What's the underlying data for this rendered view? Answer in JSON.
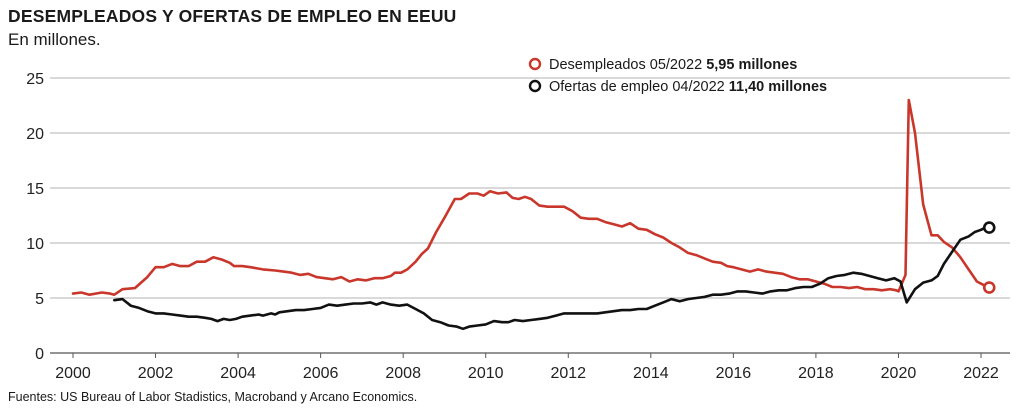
{
  "title": "DESEMPLEADOS Y OFERTAS DE EMPLEO EN EEUU",
  "subtitle": "En millones.",
  "source": "Fuentes: US Bureau of Labor Stadistics, Macroband y Arcano Economics.",
  "colors": {
    "unemployed": "#c9372c",
    "openings": "#111111",
    "grid": "#9a9a9a"
  },
  "legend": [
    {
      "label": "Desempleados 05/2022",
      "value": "5,95 millones",
      "color": "#c9372c"
    },
    {
      "label": "Ofertas de empleo 04/2022",
      "value": "11,40 millones",
      "color": "#111111"
    }
  ],
  "chart_data": {
    "type": "line",
    "title": "DESEMPLEADOS Y OFERTAS DE EMPLEO EN EEUU",
    "subtitle": "En millones.",
    "xlim": [
      1999.6,
      2022.8
    ],
    "ylim": [
      0,
      25
    ],
    "x_ticks": [
      "2000",
      "2002",
      "2004",
      "2006",
      "2008",
      "2010",
      "2012",
      "2014",
      "2016",
      "2018",
      "2020",
      "2022"
    ],
    "y_ticks": [
      "0",
      "5",
      "10",
      "15",
      "20",
      "25"
    ],
    "grid": true,
    "legend_position": "top-right",
    "series": [
      {
        "name": "Desempleados 05/2022",
        "color": "#c9372c",
        "marker_last": "open-circle",
        "points": [
          [
            2000.0,
            5.4
          ],
          [
            2000.2,
            5.5
          ],
          [
            2000.4,
            5.3
          ],
          [
            2000.7,
            5.5
          ],
          [
            2000.9,
            5.4
          ],
          [
            2001.0,
            5.3
          ],
          [
            2001.2,
            5.8
          ],
          [
            2001.5,
            5.9
          ],
          [
            2001.8,
            6.9
          ],
          [
            2002.0,
            7.8
          ],
          [
            2002.2,
            7.8
          ],
          [
            2002.4,
            8.1
          ],
          [
            2002.6,
            7.9
          ],
          [
            2002.8,
            7.9
          ],
          [
            2003.0,
            8.3
          ],
          [
            2003.2,
            8.3
          ],
          [
            2003.4,
            8.7
          ],
          [
            2003.6,
            8.5
          ],
          [
            2003.8,
            8.2
          ],
          [
            2003.9,
            7.9
          ],
          [
            2004.1,
            7.9
          ],
          [
            2004.3,
            7.8
          ],
          [
            2004.6,
            7.6
          ],
          [
            2004.9,
            7.5
          ],
          [
            2005.1,
            7.4
          ],
          [
            2005.3,
            7.3
          ],
          [
            2005.5,
            7.1
          ],
          [
            2005.7,
            7.2
          ],
          [
            2005.9,
            6.9
          ],
          [
            2006.1,
            6.8
          ],
          [
            2006.3,
            6.7
          ],
          [
            2006.5,
            6.9
          ],
          [
            2006.7,
            6.5
          ],
          [
            2006.9,
            6.7
          ],
          [
            2007.1,
            6.6
          ],
          [
            2007.3,
            6.8
          ],
          [
            2007.5,
            6.8
          ],
          [
            2007.7,
            7.0
          ],
          [
            2007.8,
            7.3
          ],
          [
            2007.95,
            7.3
          ],
          [
            2008.1,
            7.6
          ],
          [
            2008.3,
            8.3
          ],
          [
            2008.45,
            9.0
          ],
          [
            2008.6,
            9.5
          ],
          [
            2008.8,
            11.0
          ],
          [
            2009.0,
            12.3
          ],
          [
            2009.25,
            14.0
          ],
          [
            2009.4,
            14.0
          ],
          [
            2009.6,
            14.5
          ],
          [
            2009.8,
            14.5
          ],
          [
            2009.95,
            14.3
          ],
          [
            2010.1,
            14.7
          ],
          [
            2010.3,
            14.5
          ],
          [
            2010.5,
            14.6
          ],
          [
            2010.65,
            14.1
          ],
          [
            2010.8,
            14.0
          ],
          [
            2010.95,
            14.2
          ],
          [
            2011.1,
            14.0
          ],
          [
            2011.3,
            13.4
          ],
          [
            2011.5,
            13.3
          ],
          [
            2011.7,
            13.3
          ],
          [
            2011.9,
            13.3
          ],
          [
            2012.1,
            12.9
          ],
          [
            2012.3,
            12.3
          ],
          [
            2012.5,
            12.2
          ],
          [
            2012.7,
            12.2
          ],
          [
            2012.9,
            11.9
          ],
          [
            2013.1,
            11.7
          ],
          [
            2013.3,
            11.5
          ],
          [
            2013.5,
            11.8
          ],
          [
            2013.7,
            11.3
          ],
          [
            2013.9,
            11.2
          ],
          [
            2014.1,
            10.8
          ],
          [
            2014.3,
            10.5
          ],
          [
            2014.5,
            10.0
          ],
          [
            2014.7,
            9.6
          ],
          [
            2014.9,
            9.1
          ],
          [
            2015.1,
            8.9
          ],
          [
            2015.3,
            8.6
          ],
          [
            2015.5,
            8.3
          ],
          [
            2015.7,
            8.2
          ],
          [
            2015.85,
            7.9
          ],
          [
            2016.0,
            7.8
          ],
          [
            2016.2,
            7.6
          ],
          [
            2016.4,
            7.4
          ],
          [
            2016.6,
            7.6
          ],
          [
            2016.8,
            7.4
          ],
          [
            2017.0,
            7.3
          ],
          [
            2017.2,
            7.2
          ],
          [
            2017.4,
            6.9
          ],
          [
            2017.6,
            6.7
          ],
          [
            2017.8,
            6.7
          ],
          [
            2018.0,
            6.5
          ],
          [
            2018.2,
            6.3
          ],
          [
            2018.4,
            6.0
          ],
          [
            2018.6,
            6.0
          ],
          [
            2018.8,
            5.9
          ],
          [
            2019.0,
            6.0
          ],
          [
            2019.2,
            5.8
          ],
          [
            2019.4,
            5.8
          ],
          [
            2019.6,
            5.7
          ],
          [
            2019.8,
            5.8
          ],
          [
            2019.95,
            5.7
          ],
          [
            2020.0,
            5.6
          ],
          [
            2020.17,
            7.1
          ],
          [
            2020.25,
            23.0
          ],
          [
            2020.4,
            20.0
          ],
          [
            2020.6,
            13.5
          ],
          [
            2020.8,
            10.7
          ],
          [
            2020.95,
            10.7
          ],
          [
            2021.1,
            10.1
          ],
          [
            2021.3,
            9.6
          ],
          [
            2021.5,
            8.7
          ],
          [
            2021.7,
            7.6
          ],
          [
            2021.9,
            6.5
          ],
          [
            2022.0,
            6.3
          ],
          [
            2022.2,
            5.95
          ]
        ]
      },
      {
        "name": "Ofertas de empleo 04/2022",
        "color": "#111111",
        "marker_last": "open-circle",
        "points": [
          [
            2001.0,
            4.8
          ],
          [
            2001.2,
            4.9
          ],
          [
            2001.4,
            4.3
          ],
          [
            2001.6,
            4.1
          ],
          [
            2001.8,
            3.8
          ],
          [
            2002.0,
            3.6
          ],
          [
            2002.2,
            3.6
          ],
          [
            2002.4,
            3.5
          ],
          [
            2002.6,
            3.4
          ],
          [
            2002.8,
            3.3
          ],
          [
            2003.0,
            3.3
          ],
          [
            2003.2,
            3.2
          ],
          [
            2003.35,
            3.1
          ],
          [
            2003.5,
            2.9
          ],
          [
            2003.65,
            3.1
          ],
          [
            2003.8,
            3.0
          ],
          [
            2003.95,
            3.1
          ],
          [
            2004.1,
            3.3
          ],
          [
            2004.3,
            3.4
          ],
          [
            2004.5,
            3.5
          ],
          [
            2004.6,
            3.4
          ],
          [
            2004.8,
            3.6
          ],
          [
            2004.9,
            3.5
          ],
          [
            2005.0,
            3.7
          ],
          [
            2005.2,
            3.8
          ],
          [
            2005.4,
            3.9
          ],
          [
            2005.6,
            3.9
          ],
          [
            2005.8,
            4.0
          ],
          [
            2006.0,
            4.1
          ],
          [
            2006.2,
            4.4
          ],
          [
            2006.4,
            4.3
          ],
          [
            2006.6,
            4.4
          ],
          [
            2006.8,
            4.5
          ],
          [
            2007.0,
            4.5
          ],
          [
            2007.2,
            4.6
          ],
          [
            2007.35,
            4.4
          ],
          [
            2007.5,
            4.6
          ],
          [
            2007.7,
            4.4
          ],
          [
            2007.9,
            4.3
          ],
          [
            2008.1,
            4.4
          ],
          [
            2008.3,
            4.0
          ],
          [
            2008.5,
            3.6
          ],
          [
            2008.7,
            3.0
          ],
          [
            2008.9,
            2.8
          ],
          [
            2009.1,
            2.5
          ],
          [
            2009.3,
            2.4
          ],
          [
            2009.45,
            2.2
          ],
          [
            2009.6,
            2.4
          ],
          [
            2009.8,
            2.5
          ],
          [
            2010.0,
            2.6
          ],
          [
            2010.2,
            2.9
          ],
          [
            2010.4,
            2.8
          ],
          [
            2010.55,
            2.8
          ],
          [
            2010.7,
            3.0
          ],
          [
            2010.9,
            2.9
          ],
          [
            2011.1,
            3.0
          ],
          [
            2011.3,
            3.1
          ],
          [
            2011.5,
            3.2
          ],
          [
            2011.7,
            3.4
          ],
          [
            2011.9,
            3.6
          ],
          [
            2012.1,
            3.6
          ],
          [
            2012.3,
            3.6
          ],
          [
            2012.5,
            3.6
          ],
          [
            2012.7,
            3.6
          ],
          [
            2012.9,
            3.7
          ],
          [
            2013.1,
            3.8
          ],
          [
            2013.3,
            3.9
          ],
          [
            2013.5,
            3.9
          ],
          [
            2013.7,
            4.0
          ],
          [
            2013.9,
            4.0
          ],
          [
            2014.1,
            4.3
          ],
          [
            2014.3,
            4.6
          ],
          [
            2014.5,
            4.9
          ],
          [
            2014.7,
            4.7
          ],
          [
            2014.9,
            4.9
          ],
          [
            2015.1,
            5.0
          ],
          [
            2015.3,
            5.1
          ],
          [
            2015.5,
            5.3
          ],
          [
            2015.7,
            5.3
          ],
          [
            2015.9,
            5.4
          ],
          [
            2016.1,
            5.6
          ],
          [
            2016.3,
            5.6
          ],
          [
            2016.5,
            5.5
          ],
          [
            2016.7,
            5.4
          ],
          [
            2016.9,
            5.6
          ],
          [
            2017.1,
            5.7
          ],
          [
            2017.3,
            5.7
          ],
          [
            2017.5,
            5.9
          ],
          [
            2017.7,
            6.0
          ],
          [
            2017.9,
            6.0
          ],
          [
            2018.1,
            6.3
          ],
          [
            2018.3,
            6.8
          ],
          [
            2018.5,
            7.0
          ],
          [
            2018.7,
            7.1
          ],
          [
            2018.9,
            7.3
          ],
          [
            2019.1,
            7.2
          ],
          [
            2019.3,
            7.0
          ],
          [
            2019.5,
            6.8
          ],
          [
            2019.7,
            6.6
          ],
          [
            2019.9,
            6.8
          ],
          [
            2020.05,
            6.5
          ],
          [
            2020.2,
            4.6
          ],
          [
            2020.4,
            5.8
          ],
          [
            2020.6,
            6.4
          ],
          [
            2020.8,
            6.6
          ],
          [
            2020.95,
            7.0
          ],
          [
            2021.1,
            8.1
          ],
          [
            2021.3,
            9.2
          ],
          [
            2021.5,
            10.3
          ],
          [
            2021.7,
            10.6
          ],
          [
            2021.85,
            11.0
          ],
          [
            2022.0,
            11.2
          ],
          [
            2022.1,
            11.4
          ],
          [
            2022.2,
            11.4
          ]
        ]
      }
    ]
  }
}
